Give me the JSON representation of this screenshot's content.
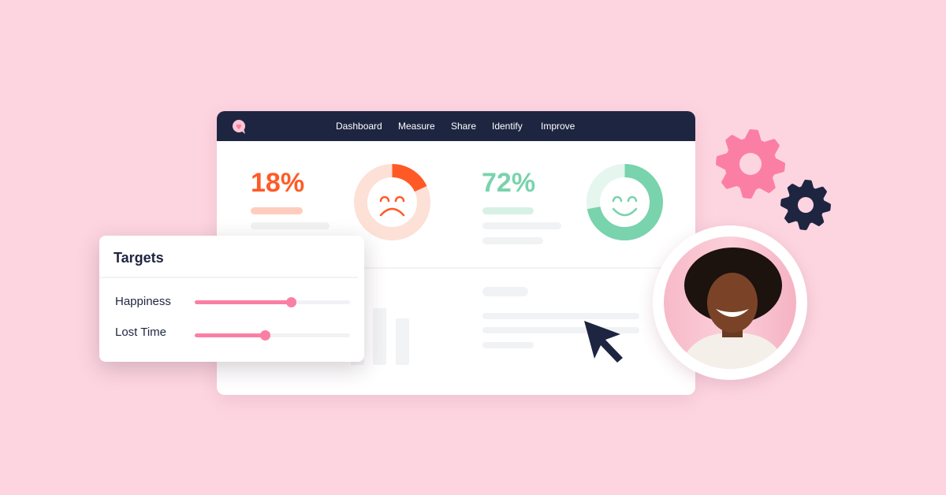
{
  "nav": {
    "items": [
      "Dashboard",
      "Measure",
      "Share",
      "Identify",
      "Improve"
    ]
  },
  "stats": [
    {
      "value": "18%",
      "percent": 18,
      "mood": "sad",
      "color": "#ff5a26",
      "track": "#fde0d6"
    },
    {
      "value": "72%",
      "percent": 72,
      "mood": "happy",
      "color": "#79d3ad",
      "track": "#e4f6ee"
    }
  ],
  "targets": {
    "title": "Targets",
    "sliders": [
      {
        "label": "Happiness",
        "value": 62
      },
      {
        "label": "Lost Time",
        "value": 45
      }
    ]
  },
  "colors": {
    "background": "#fdd5e1",
    "navbar": "#1e2541",
    "accent": "#fb7fa4",
    "gear_pink": "#fb7fa4",
    "gear_dark": "#1e2541"
  },
  "icons": {
    "logo": "heart-speech-bubble-icon",
    "cursor": "cursor-arrow-icon",
    "gears": "gear-icon"
  }
}
